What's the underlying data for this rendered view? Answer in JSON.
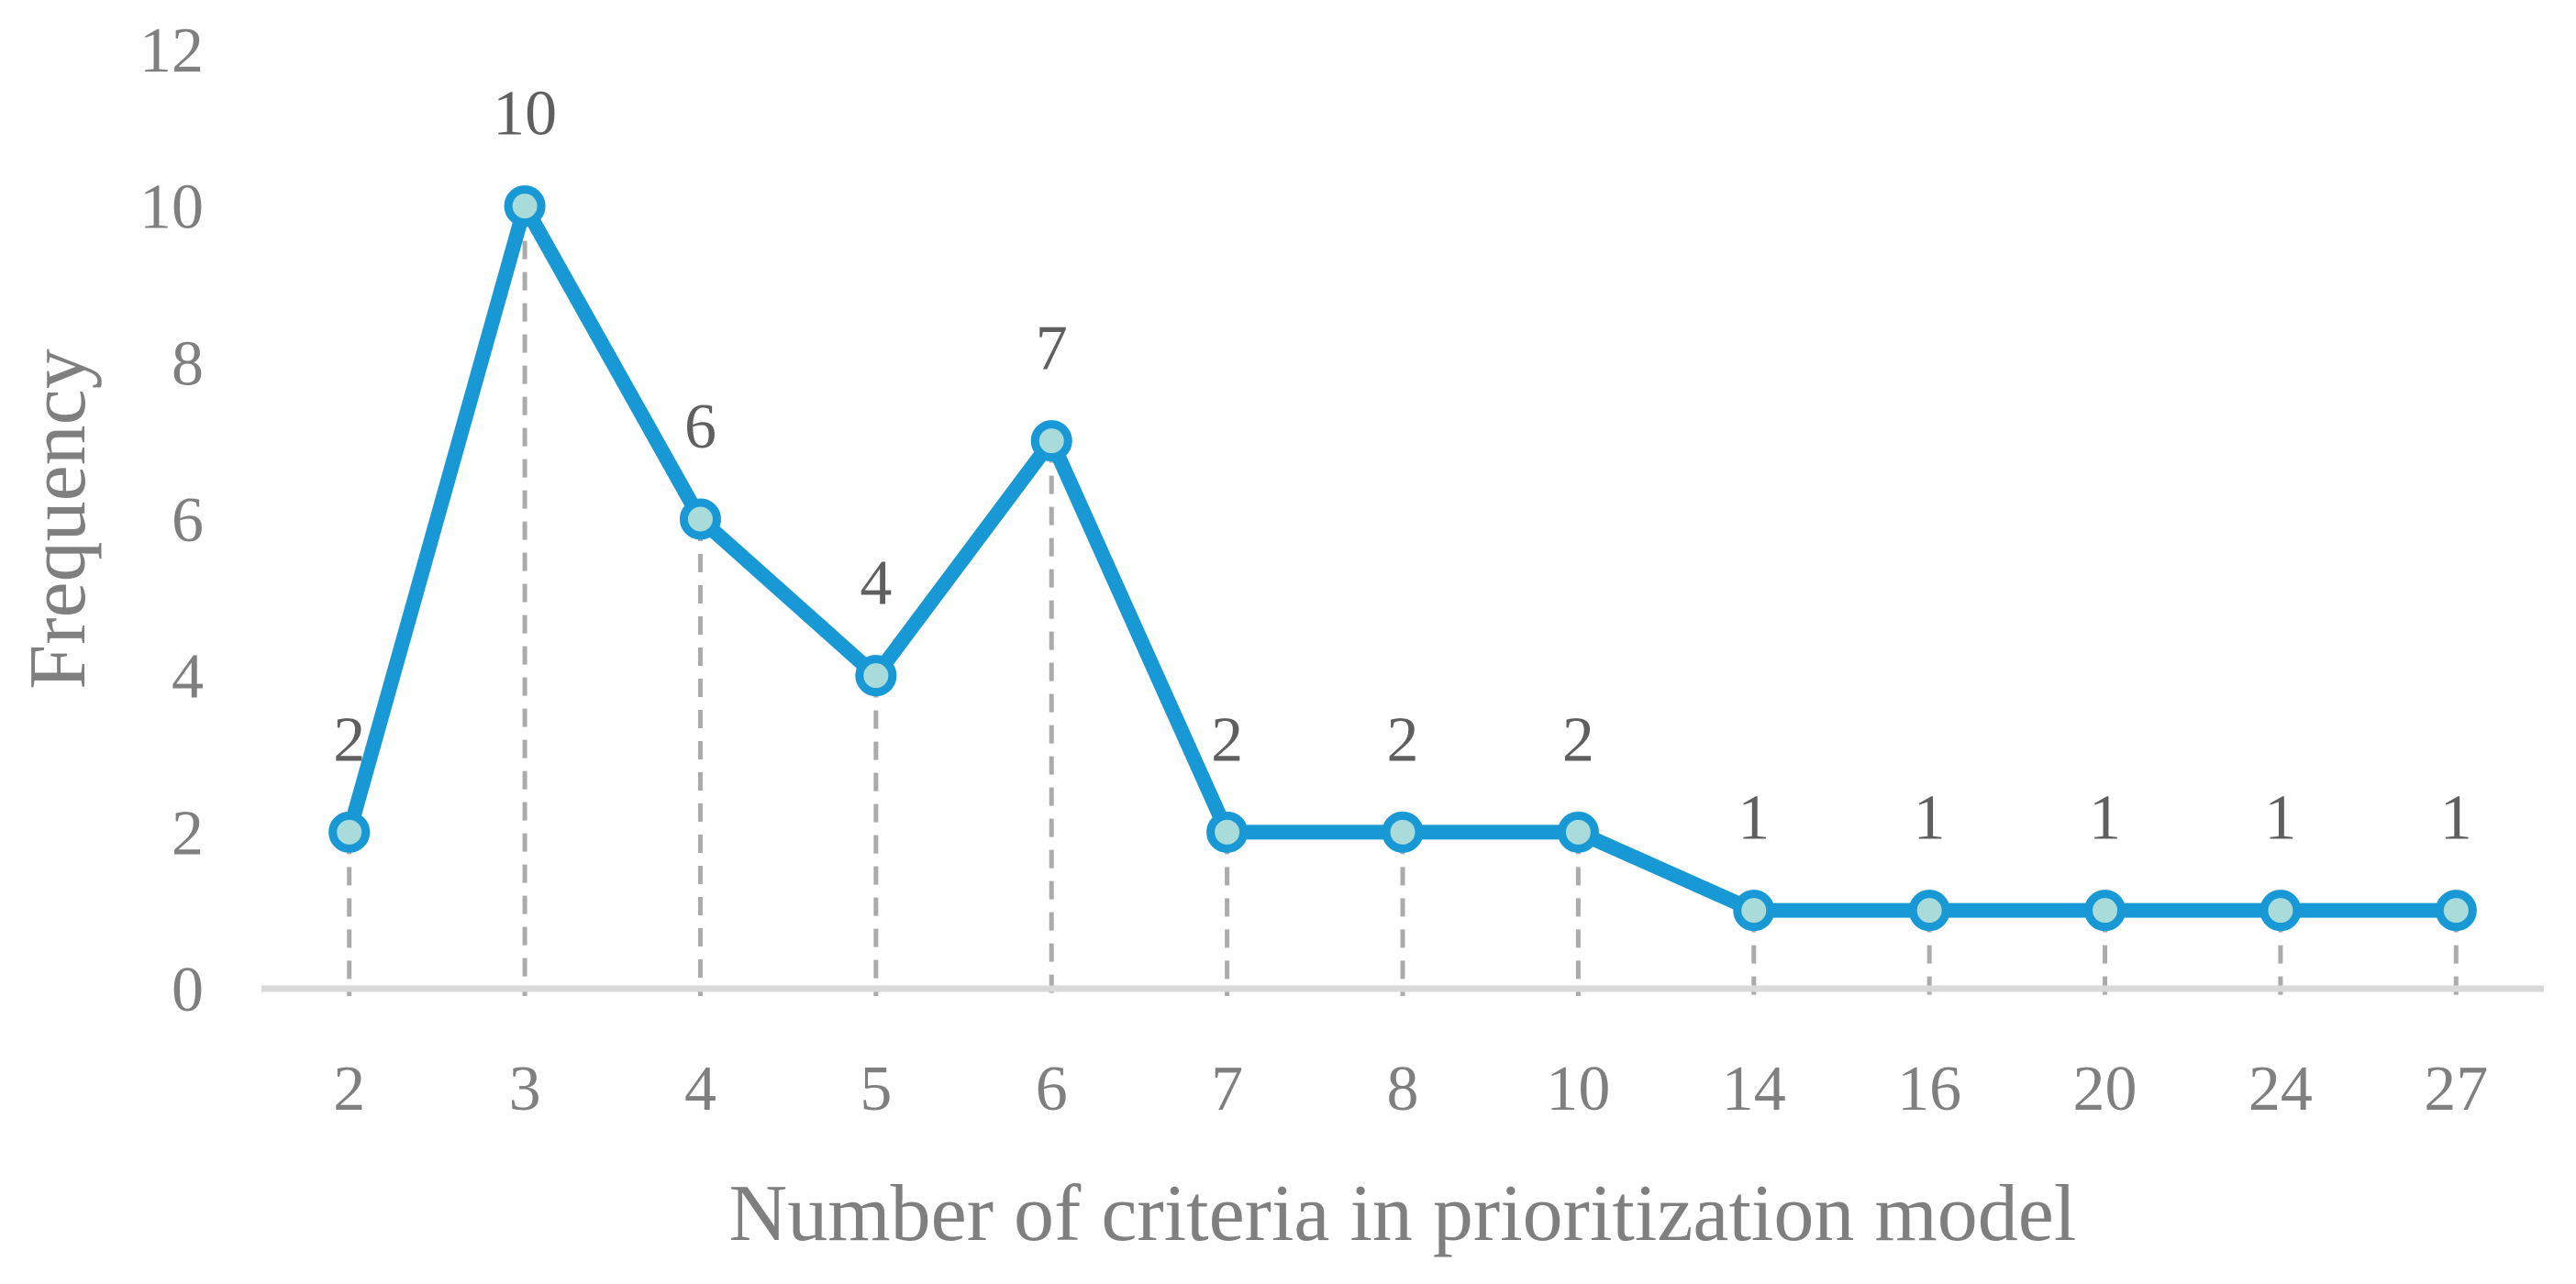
{
  "chart_data": {
    "type": "line",
    "title": "",
    "xlabel": "Number of criteria in prioritization model",
    "ylabel": "Frequency",
    "categories": [
      "2",
      "3",
      "4",
      "5",
      "6",
      "7",
      "8",
      "10",
      "14",
      "16",
      "20",
      "24",
      "27"
    ],
    "values": [
      2,
      10,
      6,
      4,
      7,
      2,
      2,
      2,
      1,
      1,
      1,
      1,
      1
    ],
    "data_labels": [
      "2",
      "10",
      "6",
      "4",
      "7",
      "2",
      "2",
      "2",
      "1",
      "1",
      "1",
      "1",
      "1"
    ],
    "yticks": [
      0,
      2,
      4,
      6,
      8,
      10,
      12
    ],
    "ylim": [
      0,
      12
    ],
    "grid": "off",
    "legend": "none",
    "marker": "circle",
    "drop_lines": "dashed",
    "colors": {
      "line": "#1899d6",
      "marker_fill": "#a8dbda",
      "marker_stroke": "#1899d6",
      "drop_line": "#ababab",
      "axis_line": "#d9d9d9",
      "tick_label": "#7f7f7f",
      "data_label": "#5f5f5f",
      "axis_title": "#7f7f7f"
    }
  }
}
